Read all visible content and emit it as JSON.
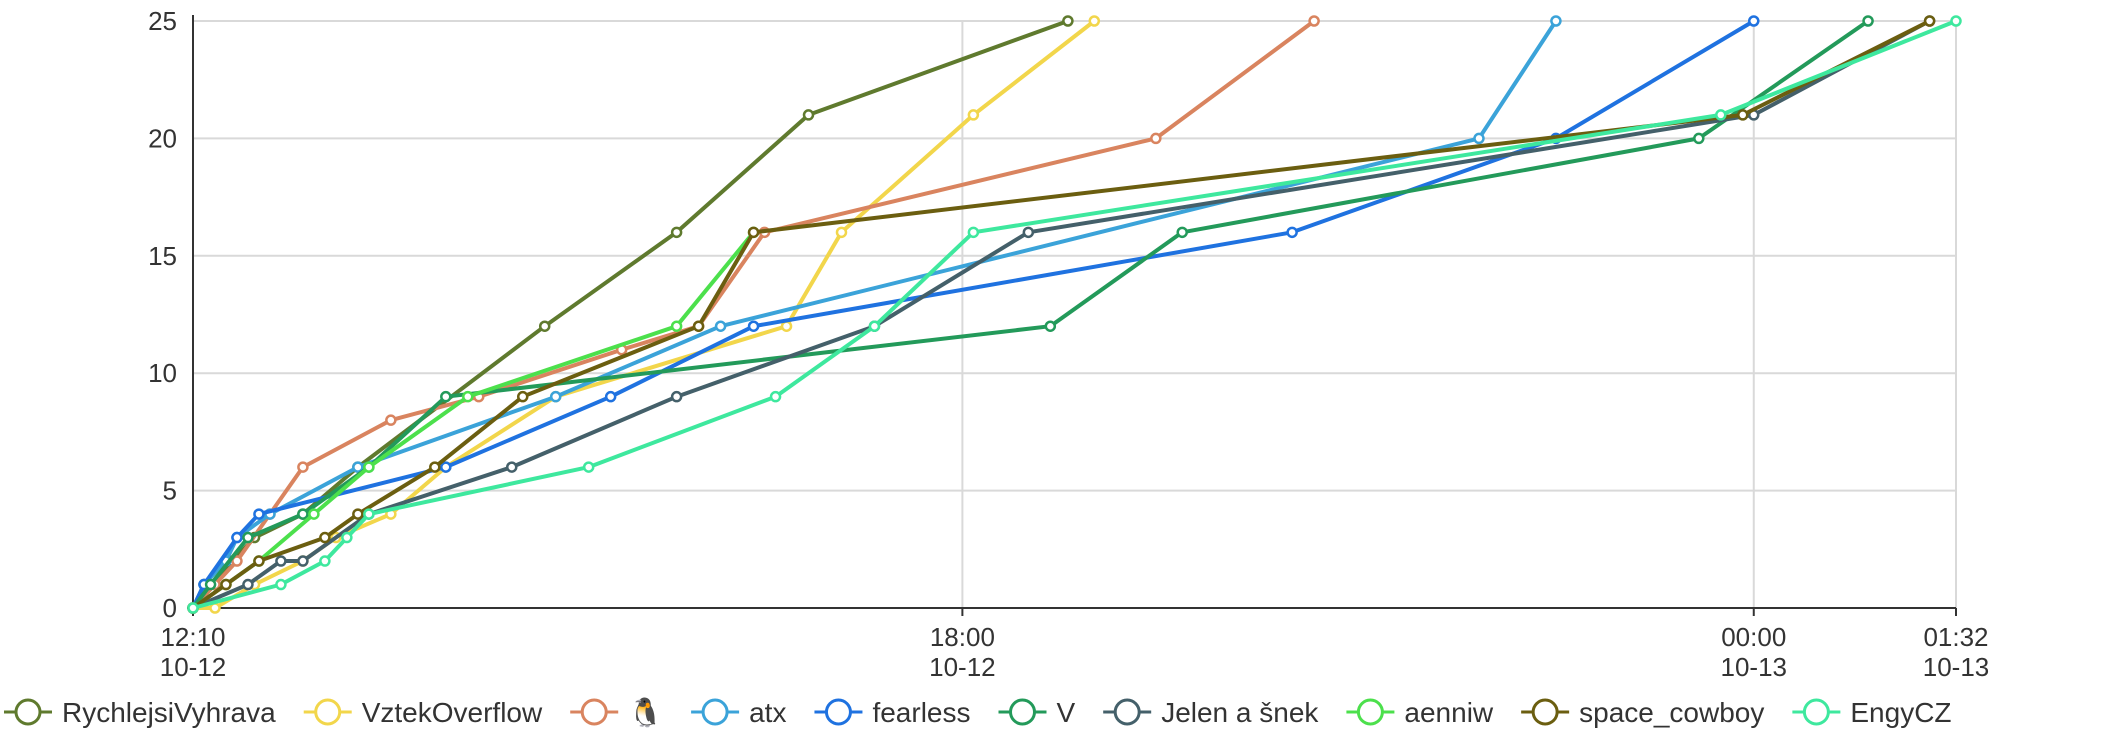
{
  "chart_data": {
    "type": "line",
    "title": "",
    "xlabel": "",
    "ylabel": "",
    "ylim": [
      0,
      25
    ],
    "yticks": [
      "0",
      "5",
      "10",
      "15",
      "20",
      "25"
    ],
    "x_range": [
      "2023-10-12 12:10",
      "2023-10-13 01:32"
    ],
    "xticks": [
      {
        "x": "2023-10-12 12:10",
        "time": "12:10",
        "date": "10-12"
      },
      {
        "x": "2023-10-12 18:00",
        "time": "18:00",
        "date": "10-12"
      },
      {
        "x": "2023-10-13 00:00",
        "time": "00:00",
        "date": "10-13"
      },
      {
        "x": "2023-10-13 01:32",
        "time": "01:32",
        "date": "10-13"
      }
    ],
    "grid": true,
    "legend_position": "bottom",
    "series": [
      {
        "name": "RychlejsiVyhrava",
        "color": "#5f7a2e",
        "points": [
          [
            "2023-10-12 12:10",
            0
          ],
          [
            "2023-10-12 12:15",
            1
          ],
          [
            "2023-10-12 12:20",
            1
          ],
          [
            "2023-10-12 12:28",
            2
          ],
          [
            "2023-10-12 12:38",
            3
          ],
          [
            "2023-10-12 13:00",
            4
          ],
          [
            "2023-10-12 13:25",
            6
          ],
          [
            "2023-10-12 14:50",
            12
          ],
          [
            "2023-10-12 15:50",
            16
          ],
          [
            "2023-10-12 16:50",
            21
          ],
          [
            "2023-10-12 18:48",
            25
          ]
        ]
      },
      {
        "name": "VztekOverflow",
        "color": "#f2d64b",
        "points": [
          [
            "2023-10-12 12:10",
            0
          ],
          [
            "2023-10-12 12:20",
            0
          ],
          [
            "2023-10-12 12:38",
            1
          ],
          [
            "2023-10-12 13:00",
            2
          ],
          [
            "2023-10-12 13:15",
            3
          ],
          [
            "2023-10-12 13:40",
            4
          ],
          [
            "2023-10-12 14:05",
            6
          ],
          [
            "2023-10-12 14:55",
            9
          ],
          [
            "2023-10-12 16:40",
            12
          ],
          [
            "2023-10-12 17:05",
            16
          ],
          [
            "2023-10-12 18:05",
            21
          ],
          [
            "2023-10-12 19:00",
            25
          ]
        ]
      },
      {
        "name": "🐧",
        "color": "#d9845f",
        "points": [
          [
            "2023-10-12 12:10",
            0
          ],
          [
            "2023-10-12 12:20",
            1
          ],
          [
            "2023-10-12 12:30",
            2
          ],
          [
            "2023-10-12 12:45",
            4
          ],
          [
            "2023-10-12 13:00",
            6
          ],
          [
            "2023-10-12 13:40",
            8
          ],
          [
            "2023-10-12 14:20",
            9
          ],
          [
            "2023-10-12 15:25",
            11
          ],
          [
            "2023-10-12 16:00",
            12
          ],
          [
            "2023-10-12 16:30",
            16
          ],
          [
            "2023-10-12 19:28",
            20
          ],
          [
            "2023-10-12 20:40",
            25
          ]
        ]
      },
      {
        "name": "atx",
        "color": "#3ba3d9",
        "points": [
          [
            "2023-10-12 12:10",
            0
          ],
          [
            "2023-10-12 12:15",
            1
          ],
          [
            "2023-10-12 12:25",
            2
          ],
          [
            "2023-10-12 12:30",
            3
          ],
          [
            "2023-10-12 12:45",
            4
          ],
          [
            "2023-10-12 13:25",
            6
          ],
          [
            "2023-10-12 14:55",
            9
          ],
          [
            "2023-10-12 16:10",
            12
          ],
          [
            "2023-10-12 21:55",
            20
          ],
          [
            "2023-10-12 22:30",
            25
          ]
        ]
      },
      {
        "name": "fearless",
        "color": "#1f72e0",
        "points": [
          [
            "2023-10-12 12:10",
            0
          ],
          [
            "2023-10-12 12:15",
            1
          ],
          [
            "2023-10-12 12:30",
            3
          ],
          [
            "2023-10-12 12:40",
            4
          ],
          [
            "2023-10-12 14:05",
            6
          ],
          [
            "2023-10-12 15:20",
            9
          ],
          [
            "2023-10-12 16:25",
            12
          ],
          [
            "2023-10-12 20:30",
            16
          ],
          [
            "2023-10-12 22:30",
            20
          ],
          [
            "2023-10-13 00:00",
            25
          ]
        ]
      },
      {
        "name": "V",
        "color": "#239a5a",
        "points": [
          [
            "2023-10-12 12:10",
            0
          ],
          [
            "2023-10-12 12:18",
            1
          ],
          [
            "2023-10-12 12:35",
            3
          ],
          [
            "2023-10-12 13:00",
            4
          ],
          [
            "2023-10-12 13:30",
            6
          ],
          [
            "2023-10-12 14:05",
            9
          ],
          [
            "2023-10-12 18:40",
            12
          ],
          [
            "2023-10-12 19:40",
            16
          ],
          [
            "2023-10-12 23:35",
            20
          ],
          [
            "2023-10-13 00:52",
            25
          ]
        ]
      },
      {
        "name": "Jelen a šnek",
        "color": "#44606a",
        "points": [
          [
            "2023-10-12 12:10",
            0
          ],
          [
            "2023-10-12 12:35",
            1
          ],
          [
            "2023-10-12 12:50",
            2
          ],
          [
            "2023-10-12 13:00",
            2
          ],
          [
            "2023-10-12 13:30",
            4
          ],
          [
            "2023-10-12 14:35",
            6
          ],
          [
            "2023-10-12 15:50",
            9
          ],
          [
            "2023-10-12 17:20",
            12
          ],
          [
            "2023-10-12 18:30",
            16
          ],
          [
            "2023-10-13 00:00",
            21
          ],
          [
            "2023-10-13 01:20",
            25
          ]
        ]
      },
      {
        "name": "aenniw",
        "color": "#4ce04c",
        "points": [
          [
            "2023-10-12 12:10",
            0
          ],
          [
            "2023-10-12 12:25",
            1
          ],
          [
            "2023-10-12 12:40",
            2
          ],
          [
            "2023-10-12 13:05",
            4
          ],
          [
            "2023-10-12 13:30",
            6
          ],
          [
            "2023-10-12 14:15",
            9
          ],
          [
            "2023-10-12 15:50",
            12
          ],
          [
            "2023-10-12 16:25",
            16
          ]
        ]
      },
      {
        "name": "space_cowboy",
        "color": "#6b5e10",
        "points": [
          [
            "2023-10-12 12:10",
            0
          ],
          [
            "2023-10-12 12:25",
            1
          ],
          [
            "2023-10-12 12:40",
            2
          ],
          [
            "2023-10-12 13:10",
            3
          ],
          [
            "2023-10-12 13:25",
            4
          ],
          [
            "2023-10-12 14:00",
            6
          ],
          [
            "2023-10-12 14:40",
            9
          ],
          [
            "2023-10-12 16:00",
            12
          ],
          [
            "2023-10-12 16:25",
            16
          ],
          [
            "2023-10-12 23:55",
            21
          ],
          [
            "2023-10-13 01:20",
            25
          ]
        ]
      },
      {
        "name": "EngyCZ",
        "color": "#3ee89e",
        "points": [
          [
            "2023-10-12 12:10",
            0
          ],
          [
            "2023-10-12 12:50",
            1
          ],
          [
            "2023-10-12 13:10",
            2
          ],
          [
            "2023-10-12 13:20",
            3
          ],
          [
            "2023-10-12 13:30",
            4
          ],
          [
            "2023-10-12 15:10",
            6
          ],
          [
            "2023-10-12 16:35",
            9
          ],
          [
            "2023-10-12 17:20",
            12
          ],
          [
            "2023-10-12 18:05",
            16
          ],
          [
            "2023-10-12 23:45",
            21
          ],
          [
            "2023-10-13 01:32",
            25
          ]
        ]
      }
    ]
  }
}
